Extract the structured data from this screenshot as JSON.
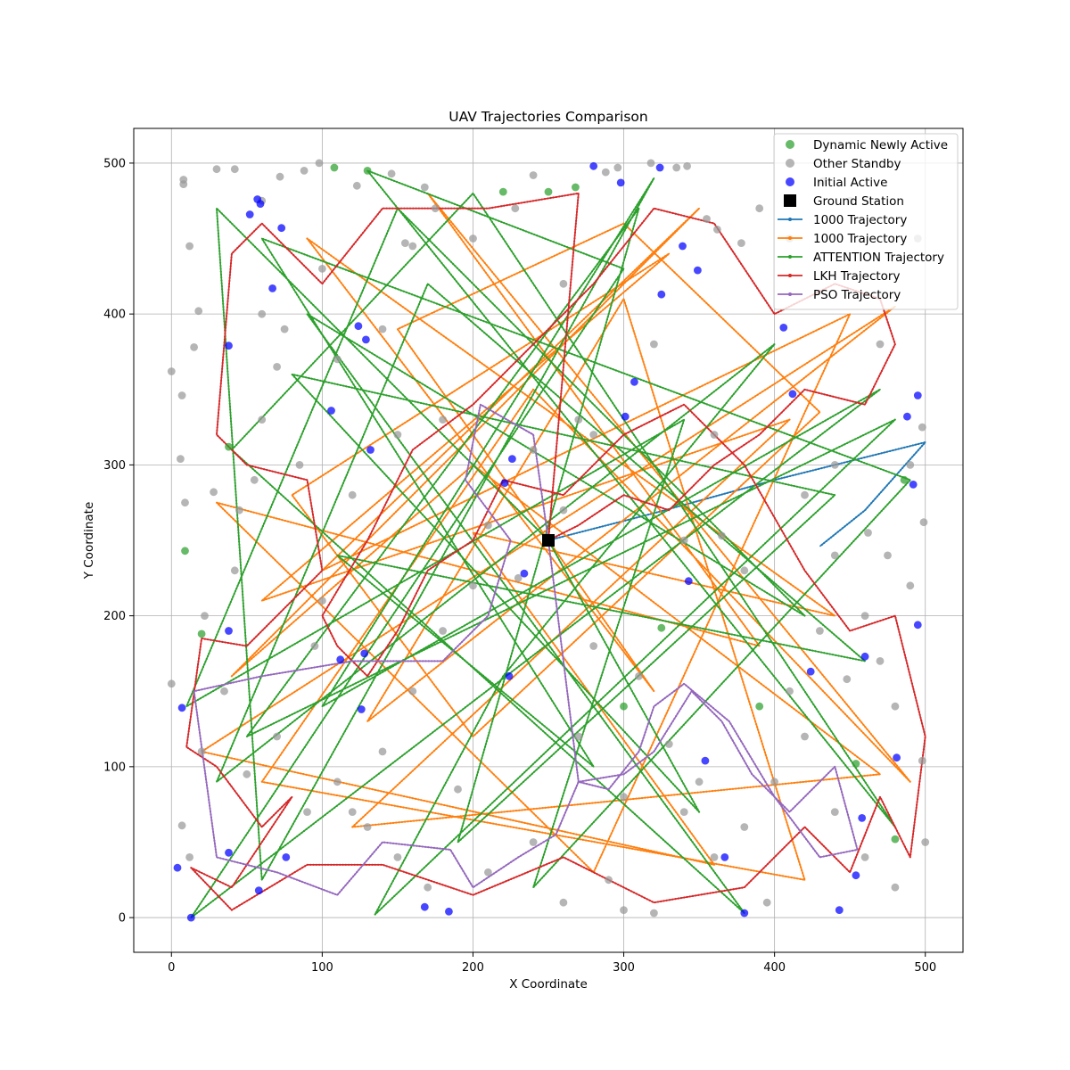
{
  "chart_data": {
    "type": "scatter",
    "title": "UAV Trajectories Comparison",
    "xlabel": "X Coordinate",
    "ylabel": "Y Coordinate",
    "xlim": [
      -25,
      525
    ],
    "ylim": [
      -23,
      523
    ],
    "xticks": [
      0,
      100,
      200,
      300,
      400,
      500
    ],
    "yticks": [
      0,
      100,
      200,
      300,
      400,
      500
    ],
    "grid": true,
    "legend_position": "top-right",
    "ground_station": {
      "name": "Ground Station",
      "x": 250,
      "y": 250,
      "color": "#000000"
    },
    "point_series": [
      {
        "name": "Dynamic Newly Active",
        "color": "#2ca02c",
        "points": [
          [
            9,
            243
          ],
          [
            38,
            312
          ],
          [
            130,
            495
          ],
          [
            108,
            497
          ],
          [
            220,
            481
          ],
          [
            250,
            481
          ],
          [
            268,
            484
          ],
          [
            480,
            52
          ],
          [
            300,
            140
          ],
          [
            325,
            192
          ],
          [
            454,
            102
          ],
          [
            486,
            290
          ],
          [
            390,
            140
          ],
          [
            20,
            188
          ]
        ]
      },
      {
        "name": "Other Standby",
        "color": "#999999",
        "points": [
          [
            8,
            489
          ],
          [
            8,
            486
          ],
          [
            30,
            496
          ],
          [
            42,
            496
          ],
          [
            60,
            475
          ],
          [
            72,
            491
          ],
          [
            88,
            495
          ],
          [
            98,
            500
          ],
          [
            123,
            485
          ],
          [
            146,
            493
          ],
          [
            168,
            484
          ],
          [
            228,
            470
          ],
          [
            240,
            492
          ],
          [
            288,
            494
          ],
          [
            296,
            497
          ],
          [
            318,
            500
          ],
          [
            335,
            497
          ],
          [
            342,
            498
          ],
          [
            362,
            456
          ],
          [
            378,
            447
          ],
          [
            390,
            470
          ],
          [
            410,
            450
          ],
          [
            432,
            488
          ],
          [
            450,
            475
          ],
          [
            470,
            380
          ],
          [
            495,
            450
          ],
          [
            0,
            362
          ],
          [
            7,
            346
          ],
          [
            12,
            445
          ],
          [
            18,
            402
          ],
          [
            15,
            378
          ],
          [
            6,
            304
          ],
          [
            9,
            275
          ],
          [
            22,
            200
          ],
          [
            28,
            282
          ],
          [
            42,
            230
          ],
          [
            55,
            290
          ],
          [
            60,
            330
          ],
          [
            70,
            365
          ],
          [
            85,
            300
          ],
          [
            95,
            180
          ],
          [
            100,
            210
          ],
          [
            120,
            280
          ],
          [
            150,
            320
          ],
          [
            180,
            330
          ],
          [
            210,
            260
          ],
          [
            270,
            330
          ],
          [
            280,
            180
          ],
          [
            310,
            160
          ],
          [
            340,
            250
          ],
          [
            365,
            253
          ],
          [
            380,
            230
          ],
          [
            420,
            280
          ],
          [
            440,
            300
          ],
          [
            460,
            200
          ],
          [
            475,
            240
          ],
          [
            490,
            300
          ],
          [
            498,
            325
          ],
          [
            499,
            262
          ],
          [
            0,
            155
          ],
          [
            7,
            61
          ],
          [
            12,
            40
          ],
          [
            20,
            110
          ],
          [
            35,
            150
          ],
          [
            50,
            95
          ],
          [
            70,
            120
          ],
          [
            90,
            70
          ],
          [
            110,
            90
          ],
          [
            130,
            60
          ],
          [
            150,
            40
          ],
          [
            170,
            20
          ],
          [
            190,
            85
          ],
          [
            210,
            30
          ],
          [
            240,
            50
          ],
          [
            260,
            10
          ],
          [
            290,
            25
          ],
          [
            300,
            5
          ],
          [
            320,
            3
          ],
          [
            340,
            70
          ],
          [
            360,
            40
          ],
          [
            380,
            60
          ],
          [
            400,
            90
          ],
          [
            420,
            120
          ],
          [
            440,
            70
          ],
          [
            460,
            40
          ],
          [
            480,
            20
          ],
          [
            500,
            50
          ],
          [
            498,
            104
          ],
          [
            462,
            255
          ],
          [
            448,
            158
          ],
          [
            430,
            190
          ],
          [
            360,
            320
          ],
          [
            330,
            115
          ],
          [
            395,
            10
          ],
          [
            355,
            463
          ],
          [
            440,
            240
          ],
          [
            160,
            445
          ],
          [
            155,
            447
          ],
          [
            100,
            430
          ],
          [
            60,
            400
          ],
          [
            75,
            390
          ],
          [
            45,
            270
          ],
          [
            110,
            370
          ],
          [
            140,
            390
          ],
          [
            230,
            225
          ],
          [
            260,
            270
          ],
          [
            240,
            310
          ],
          [
            200,
            220
          ],
          [
            180,
            190
          ],
          [
            160,
            150
          ],
          [
            140,
            110
          ],
          [
            120,
            70
          ],
          [
            270,
            120
          ],
          [
            300,
            80
          ],
          [
            350,
            90
          ],
          [
            410,
            150
          ],
          [
            470,
            170
          ],
          [
            490,
            220
          ],
          [
            480,
            140
          ],
          [
            280,
            320
          ],
          [
            320,
            380
          ],
          [
            260,
            420
          ],
          [
            200,
            450
          ],
          [
            175,
            470
          ]
        ]
      },
      {
        "name": "Initial Active",
        "color": "#0000ff",
        "points": [
          [
            13,
            0
          ],
          [
            4,
            33
          ],
          [
            7,
            139
          ],
          [
            38,
            190
          ],
          [
            38,
            379
          ],
          [
            52,
            466
          ],
          [
            57,
            476
          ],
          [
            59,
            473
          ],
          [
            67,
            417
          ],
          [
            73,
            457
          ],
          [
            124,
            392
          ],
          [
            129,
            383
          ],
          [
            106,
            336
          ],
          [
            132,
            310
          ],
          [
            112,
            171
          ],
          [
            128,
            175
          ],
          [
            126,
            138
          ],
          [
            58,
            18
          ],
          [
            38,
            43
          ],
          [
            76,
            40
          ],
          [
            168,
            7
          ],
          [
            184,
            4
          ],
          [
            224,
            160
          ],
          [
            234,
            228
          ],
          [
            226,
            304
          ],
          [
            280,
            498
          ],
          [
            298,
            487
          ],
          [
            324,
            497
          ],
          [
            325,
            413
          ],
          [
            339,
            445
          ],
          [
            349,
            429
          ],
          [
            307,
            355
          ],
          [
            301,
            332
          ],
          [
            354,
            104
          ],
          [
            367,
            40
          ],
          [
            380,
            3
          ],
          [
            443,
            5
          ],
          [
            454,
            28
          ],
          [
            458,
            66
          ],
          [
            481,
            106
          ],
          [
            460,
            173
          ],
          [
            424,
            163
          ],
          [
            412,
            347
          ],
          [
            406,
            391
          ],
          [
            492,
            287
          ],
          [
            495,
            346
          ],
          [
            488,
            332
          ],
          [
            495,
            194
          ],
          [
            343,
            223
          ],
          [
            221,
            288
          ]
        ]
      }
    ],
    "series": [
      {
        "name": "1000 Trajectory",
        "color": "#1f77b4",
        "x": [
          250,
          320,
          400,
          500,
          460,
          430
        ],
        "y": [
          250,
          268,
          290,
          315,
          270,
          246
        ]
      },
      {
        "name": "1000 Trajectory",
        "color": "#ff7f0e",
        "x": [
          250,
          150,
          300,
          430,
          200,
          80,
          330,
          60,
          410,
          120,
          470,
          200,
          40,
          350,
          100,
          450,
          280,
          30,
          390,
          170,
          490,
          240,
          60,
          420,
          300,
          130,
          480,
          20,
          360,
          200,
          440,
          90,
          320,
          250
        ],
        "y": [
          250,
          390,
          460,
          335,
          120,
          280,
          440,
          210,
          330,
          60,
          95,
          300,
          160,
          470,
          230,
          400,
          30,
          275,
          180,
          480,
          90,
          350,
          90,
          25,
          410,
          130,
          405,
          110,
          35,
          255,
          200,
          450,
          150,
          250
        ]
      },
      {
        "name": "ATTENTION Trajectory",
        "color": "#2ca02c",
        "x": [
          250,
          30,
          60,
          320,
          100,
          470,
          13,
          300,
          130,
          480,
          200,
          40,
          380,
          90,
          420,
          150,
          10,
          340,
          240,
          490,
          60,
          280,
          110,
          460,
          170,
          30,
          400,
          220,
          135,
          480,
          50,
          310,
          190,
          440,
          80,
          350,
          250
        ],
        "y": [
          250,
          470,
          25,
          490,
          140,
          350,
          0,
          430,
          495,
          60,
          480,
          310,
          3,
          400,
          200,
          470,
          140,
          330,
          20,
          290,
          450,
          100,
          240,
          170,
          420,
          90,
          380,
          160,
          2,
          330,
          120,
          470,
          50,
          280,
          360,
          70,
          250
        ]
      },
      {
        "name": "LKH Trajectory",
        "color": "#d62728",
        "x": [
          250,
          270,
          210,
          140,
          100,
          60,
          40,
          30,
          50,
          90,
          100,
          70,
          50,
          20,
          10,
          30,
          60,
          80,
          40,
          13,
          40,
          90,
          140,
          200,
          260,
          320,
          380,
          420,
          450,
          470,
          490,
          500,
          480,
          450,
          420,
          380,
          340,
          300,
          260,
          220,
          200,
          170,
          150,
          130,
          110,
          100,
          130,
          160,
          200,
          240,
          280,
          320,
          360,
          400,
          440,
          470,
          480,
          460,
          420,
          390,
          360,
          330,
          300,
          270,
          250
        ],
        "y": [
          250,
          480,
          470,
          470,
          420,
          460,
          440,
          320,
          300,
          290,
          230,
          200,
          180,
          185,
          113,
          100,
          60,
          80,
          20,
          33,
          5,
          35,
          35,
          15,
          40,
          10,
          20,
          60,
          30,
          80,
          40,
          120,
          200,
          190,
          230,
          300,
          340,
          320,
          280,
          290,
          250,
          230,
          190,
          160,
          180,
          200,
          250,
          310,
          340,
          380,
          420,
          470,
          460,
          400,
          420,
          410,
          380,
          340,
          350,
          320,
          300,
          270,
          280,
          260,
          250
        ]
      },
      {
        "name": "PSO Trajectory",
        "color": "#9467bd",
        "x": [
          250,
          240,
          205,
          195,
          225,
          210,
          180,
          120,
          60,
          15,
          30,
          70,
          110,
          140,
          185,
          200,
          230,
          255,
          270,
          300,
          320,
          345,
          365,
          385,
          410,
          440,
          455,
          430,
          400,
          370,
          340,
          320,
          310,
          290,
          270,
          250
        ],
        "y": [
          250,
          320,
          340,
          290,
          250,
          200,
          170,
          170,
          160,
          150,
          40,
          30,
          15,
          50,
          45,
          20,
          40,
          55,
          90,
          95,
          110,
          150,
          130,
          95,
          70,
          100,
          45,
          40,
          80,
          130,
          155,
          140,
          110,
          85,
          90,
          250
        ]
      }
    ]
  },
  "legend": {
    "items": [
      {
        "label": "Dynamic Newly Active",
        "kind": "marker",
        "color": "#2ca02c"
      },
      {
        "label": "Other Standby",
        "kind": "marker",
        "color": "#999999"
      },
      {
        "label": "Initial Active",
        "kind": "marker",
        "color": "#0000ff"
      },
      {
        "label": "Ground Station",
        "kind": "square",
        "color": "#000000"
      },
      {
        "label": "1000 Trajectory",
        "kind": "line",
        "color": "#1f77b4"
      },
      {
        "label": "1000 Trajectory",
        "kind": "line",
        "color": "#ff7f0e"
      },
      {
        "label": "ATTENTION Trajectory",
        "kind": "line",
        "color": "#2ca02c"
      },
      {
        "label": "LKH Trajectory",
        "kind": "line",
        "color": "#d62728"
      },
      {
        "label": "PSO Trajectory",
        "kind": "line",
        "color": "#9467bd"
      }
    ]
  }
}
